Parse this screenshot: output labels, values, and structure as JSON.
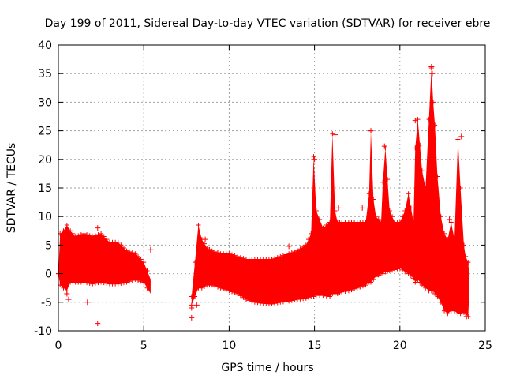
{
  "chart_data": {
    "type": "scatter",
    "title": "Day 199 of 2011, Sidereal Day-to-day VTEC variation (SDTVAR) for receiver ebre",
    "xlabel": "GPS time / hours",
    "ylabel": "SDTVAR / TECUs",
    "xlim": [
      0,
      25
    ],
    "ylim": [
      -10,
      40
    ],
    "xticks": [
      "0",
      "5",
      "10",
      "15",
      "20",
      "25"
    ],
    "yticks": [
      "-10",
      "-5",
      "0",
      "5",
      "10",
      "15",
      "20",
      "25",
      "30",
      "35",
      "40"
    ],
    "grid": true,
    "series": [
      {
        "name": "SDTVAR",
        "color": "#ff0000",
        "marker": "+",
        "envelope": {
          "x": [
            0.0,
            0.1,
            0.3,
            0.5,
            0.7,
            1.0,
            1.5,
            2.0,
            2.5,
            3.0,
            3.5,
            4.0,
            4.5,
            5.0,
            5.4,
            null,
            7.8,
            8.0,
            8.2,
            8.4,
            8.7,
            9.0,
            9.5,
            10.0,
            10.5,
            11.0,
            11.5,
            12.0,
            12.5,
            13.0,
            13.5,
            14.0,
            14.5,
            14.8,
            14.95,
            15.1,
            15.5,
            15.9,
            16.05,
            16.2,
            16.35,
            16.6,
            17.0,
            17.5,
            18.0,
            18.2,
            18.3,
            18.45,
            18.6,
            18.9,
            19.0,
            19.15,
            19.4,
            19.7,
            20.0,
            20.3,
            20.5,
            20.8,
            20.9,
            21.05,
            21.3,
            21.5,
            21.7,
            21.85,
            21.95,
            22.05,
            22.2,
            22.4,
            22.6,
            22.8,
            23.0,
            23.2,
            23.4,
            23.55,
            23.75,
            23.85,
            24.0,
            24.05
          ],
          "upper": [
            0.0,
            7.0,
            7.5,
            8.5,
            7.5,
            6.5,
            7.0,
            6.5,
            7.0,
            5.5,
            5.5,
            4.0,
            3.5,
            2.0,
            -1.0,
            null,
            -4.0,
            2.0,
            8.5,
            6.0,
            4.5,
            4.0,
            3.5,
            3.5,
            3.0,
            2.5,
            2.5,
            2.5,
            2.5,
            3.0,
            3.5,
            4.0,
            5.0,
            7.0,
            20.5,
            11.0,
            8.0,
            9.0,
            24.5,
            11.0,
            9.0,
            9.0,
            9.0,
            9.0,
            9.0,
            14.0,
            25.0,
            13.0,
            10.0,
            9.0,
            16.0,
            22.0,
            11.0,
            9.0,
            9.0,
            11.0,
            14.0,
            9.0,
            22.0,
            27.0,
            18.0,
            15.0,
            27.0,
            36.0,
            30.0,
            26.0,
            17.0,
            10.0,
            7.0,
            6.0,
            9.0,
            6.0,
            23.5,
            15.0,
            5.0,
            3.0,
            2.0,
            0.0
          ],
          "lower": [
            0.0,
            -2.0,
            -2.5,
            -3.0,
            -1.5,
            -1.5,
            -1.5,
            -1.8,
            -1.5,
            -1.8,
            -1.8,
            -1.5,
            -1.0,
            -1.5,
            -3.5,
            null,
            -5.5,
            -4.0,
            -2.5,
            -2.5,
            -2.0,
            -2.0,
            -2.5,
            -3.0,
            -3.5,
            -4.5,
            -5.0,
            -5.2,
            -5.3,
            -5.0,
            -4.8,
            -4.5,
            -4.3,
            -4.0,
            -4.0,
            -3.8,
            -3.8,
            -4.0,
            -3.5,
            -3.5,
            -3.5,
            -3.2,
            -3.0,
            -2.5,
            -2.0,
            -1.5,
            -1.5,
            -1.0,
            -0.5,
            0.0,
            0.0,
            0.3,
            0.5,
            0.7,
            1.0,
            0.3,
            0.0,
            -0.8,
            -1.5,
            -1.0,
            -2.0,
            -2.5,
            -3.0,
            -3.0,
            -3.0,
            -3.5,
            -4.0,
            -5.0,
            -6.5,
            -7.0,
            -6.5,
            -6.5,
            -7.0,
            -7.0,
            -6.8,
            -7.0,
            -7.5,
            -4.0
          ]
        },
        "outliers": [
          {
            "x": 0.6,
            "y": -4.5
          },
          {
            "x": 0.5,
            "y": -3.5
          },
          {
            "x": 1.7,
            "y": -5.0
          },
          {
            "x": 2.3,
            "y": -8.7
          },
          {
            "x": 2.3,
            "y": 8.0
          },
          {
            "x": 5.4,
            "y": 4.2
          },
          {
            "x": 7.8,
            "y": -7.7
          },
          {
            "x": 7.8,
            "y": -6.0
          },
          {
            "x": 8.1,
            "y": -5.5
          },
          {
            "x": 8.6,
            "y": 6.0
          },
          {
            "x": 13.5,
            "y": 4.8
          },
          {
            "x": 17.8,
            "y": 11.5
          },
          {
            "x": 16.4,
            "y": 11.5
          },
          {
            "x": 15.0,
            "y": 20.0
          },
          {
            "x": 16.2,
            "y": 24.3
          },
          {
            "x": 18.3,
            "y": 25.0
          },
          {
            "x": 19.1,
            "y": 22.3
          },
          {
            "x": 20.9,
            "y": 26.8
          },
          {
            "x": 21.85,
            "y": 36.2
          },
          {
            "x": 21.9,
            "y": 35.0
          },
          {
            "x": 23.6,
            "y": 24.0
          },
          {
            "x": 22.9,
            "y": 9.5
          },
          {
            "x": 23.9,
            "y": -7.5
          },
          {
            "x": 23.3,
            "y": 6.5
          }
        ]
      }
    ]
  }
}
